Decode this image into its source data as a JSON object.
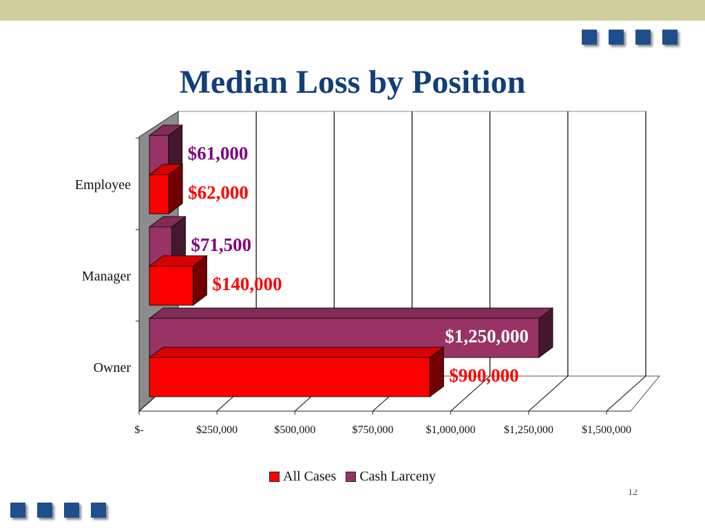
{
  "slide": {
    "title": "Median Loss by Position",
    "page_number": "12"
  },
  "colors": {
    "all_cases": "#ff0000",
    "cash_larceny": "#993366",
    "all_cases_label": "#ff0000",
    "cash_larceny_label": "#800080",
    "owner_cash_label": "#ffffff",
    "title": "#123f7a",
    "deco": "#1f4e8c"
  },
  "chart_data": {
    "type": "bar",
    "orientation": "horizontal",
    "three_d": true,
    "categories": [
      "Employee",
      "Manager",
      "Owner"
    ],
    "series": [
      {
        "name": "All Cases",
        "values": [
          62000,
          140000,
          900000
        ],
        "labels": [
          "$62,000",
          "$140,000",
          "$900,000"
        ]
      },
      {
        "name": "Cash Larceny",
        "values": [
          61000,
          71500,
          1250000
        ],
        "labels": [
          "$61,000",
          "$71,500",
          "$1,250,000"
        ]
      }
    ],
    "xlim": [
      0,
      1500000
    ],
    "x_ticks": [
      "$-",
      "$250,000",
      "$500,000",
      "$750,000",
      "$1,000,000",
      "$1,250,000",
      "$1,500,000"
    ],
    "grid": true,
    "legend_position": "bottom",
    "title": "",
    "xlabel": "",
    "ylabel": ""
  }
}
